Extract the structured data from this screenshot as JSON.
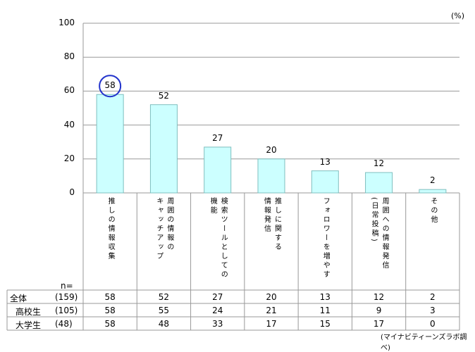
{
  "chart_data": {
    "type": "bar",
    "unit": "(%)",
    "ylim": [
      0,
      100
    ],
    "yticks": [
      0,
      20,
      40,
      60,
      80,
      100
    ],
    "categories": [
      [
        "推しの情報収集"
      ],
      [
        "周囲の情報の",
        "キャッチアップ"
      ],
      [
        "検索ツールとしての",
        "機能"
      ],
      [
        "推しに関する",
        "情報発信"
      ],
      [
        "フォロワーを増やす"
      ],
      [
        "周囲への情報発信",
        "(日常投稿)"
      ],
      [
        "その他"
      ]
    ],
    "values": [
      58,
      52,
      27,
      20,
      13,
      12,
      2
    ],
    "highlight_index": 0,
    "colors": {
      "bar_fill": "#ccffff",
      "bar_stroke": "#7fbfbf",
      "highlight": "#2233cc",
      "grid": "#999999"
    }
  },
  "table": {
    "n_label": "n=",
    "rows": [
      {
        "label": "全体",
        "n": "(159)",
        "values": [
          "58",
          "52",
          "27",
          "20",
          "13",
          "12",
          "2"
        ]
      },
      {
        "label": "高校生",
        "n": "(105)",
        "values": [
          "58",
          "55",
          "24",
          "21",
          "11",
          "9",
          "3"
        ]
      },
      {
        "label": "大学生",
        "n": "(48)",
        "values": [
          "58",
          "48",
          "33",
          "17",
          "15",
          "17",
          "0"
        ]
      }
    ]
  },
  "source_note": "(マイナビティーンズラボ調べ)"
}
